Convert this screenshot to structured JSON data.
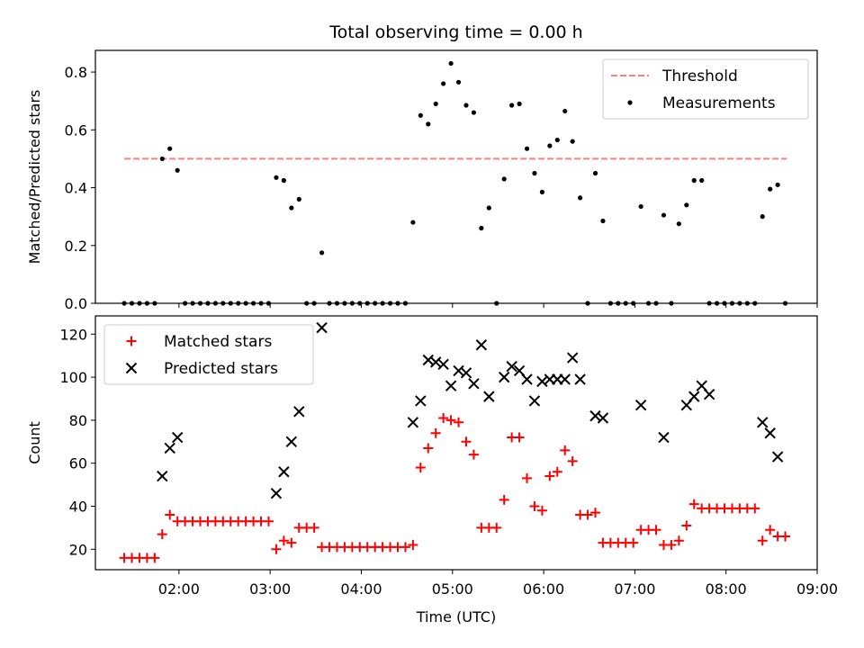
{
  "title": "Total observing time = 0.00 h",
  "chart_data": [
    {
      "type": "scatter",
      "ylabel": "Matched/Predicted stars",
      "xlabel": "",
      "xlim": [
        "01:05",
        "09:00"
      ],
      "ylim": [
        0,
        0.875
      ],
      "yticks": [
        0.0,
        0.2,
        0.4,
        0.6,
        0.8
      ],
      "ytick_labels": [
        "0.0",
        "0.2",
        "0.4",
        "0.6",
        "0.8"
      ],
      "xticks": [
        "02:00",
        "03:00",
        "04:00",
        "05:00",
        "06:00",
        "07:00",
        "08:00",
        "09:00"
      ],
      "xtick_labels_shown": false,
      "legend": {
        "placement": "upper right",
        "entries": [
          "Threshold",
          "Measurements"
        ]
      },
      "threshold": {
        "name": "Threshold",
        "value": 0.5,
        "x_range": [
          "01:24",
          "08:40"
        ],
        "color": "#ff7f7f",
        "style": "dashed"
      },
      "series": [
        {
          "name": "Measurements",
          "color": "#000000",
          "marker": "dot",
          "x": [
            "01:24",
            "01:29",
            "01:34",
            "01:39",
            "01:44",
            "01:49",
            "01:54",
            "01:59",
            "02:04",
            "02:09",
            "02:14",
            "02:19",
            "02:24",
            "02:29",
            "02:34",
            "02:39",
            "02:44",
            "02:49",
            "02:54",
            "02:59",
            "03:04",
            "03:09",
            "03:14",
            "03:19",
            "03:24",
            "03:29",
            "03:34",
            "03:39",
            "03:44",
            "03:49",
            "03:54",
            "03:59",
            "04:04",
            "04:09",
            "04:14",
            "04:19",
            "04:24",
            "04:29",
            "04:34",
            "04:39",
            "04:44",
            "04:49",
            "04:54",
            "04:59",
            "05:04",
            "05:09",
            "05:14",
            "05:19",
            "05:24",
            "05:29",
            "05:34",
            "05:39",
            "05:44",
            "05:49",
            "05:54",
            "05:59",
            "06:04",
            "06:09",
            "06:14",
            "06:19",
            "06:24",
            "06:29",
            "06:34",
            "06:39",
            "06:44",
            "06:49",
            "06:54",
            "06:59",
            "07:04",
            "07:09",
            "07:14",
            "07:19",
            "07:24",
            "07:29",
            "07:34",
            "07:39",
            "07:44",
            "07:49",
            "07:54",
            "07:59",
            "08:04",
            "08:09",
            "08:14",
            "08:19",
            "08:24",
            "08:29",
            "08:34",
            "08:39"
          ],
          "y": [
            0,
            0,
            0,
            0,
            0,
            0.5,
            0.535,
            0.46,
            0,
            0,
            0,
            0,
            0,
            0,
            0,
            0,
            0,
            0,
            0,
            0,
            0.435,
            0.425,
            0.33,
            0.36,
            0,
            0,
            0.175,
            0,
            0,
            0,
            0,
            0,
            0,
            0,
            0,
            0,
            0,
            0,
            0.28,
            0.65,
            0.62,
            0.69,
            0.76,
            0.83,
            0.765,
            0.685,
            0.66,
            0.26,
            0.33,
            0,
            0.43,
            0.685,
            0.69,
            0.535,
            0.45,
            0.385,
            0.545,
            0.565,
            0.665,
            0.56,
            0.365,
            0,
            0.45,
            0.285,
            0,
            0,
            0,
            0,
            0.335,
            0,
            0,
            0.305,
            0,
            0.275,
            0.34,
            0.425,
            0.425,
            0,
            0,
            0,
            0,
            0,
            0,
            0,
            0.3,
            0.395,
            0.41,
            0
          ]
        }
      ]
    },
    {
      "type": "scatter",
      "xlabel": "Time (UTC)",
      "ylabel": "Count",
      "xlim": [
        "01:05",
        "09:00"
      ],
      "ylim": [
        10.5,
        128.5
      ],
      "yticks": [
        20,
        40,
        60,
        80,
        100,
        120
      ],
      "ytick_labels": [
        "20",
        "40",
        "60",
        "80",
        "100",
        "120"
      ],
      "xticks": [
        "02:00",
        "03:00",
        "04:00",
        "05:00",
        "06:00",
        "07:00",
        "08:00",
        "09:00"
      ],
      "xtick_labels": [
        "02:00",
        "03:00",
        "04:00",
        "05:00",
        "06:00",
        "07:00",
        "08:00",
        "09:00"
      ],
      "legend": {
        "placement": "upper left",
        "entries": [
          "Matched stars",
          "Predicted stars"
        ]
      },
      "series": [
        {
          "name": "Matched stars",
          "color": "#ff0000",
          "marker": "plus",
          "x": [
            "01:24",
            "01:29",
            "01:34",
            "01:39",
            "01:44",
            "01:49",
            "01:54",
            "01:59",
            "02:04",
            "02:09",
            "02:14",
            "02:19",
            "02:24",
            "02:29",
            "02:34",
            "02:39",
            "02:44",
            "02:49",
            "02:54",
            "02:59",
            "03:04",
            "03:09",
            "03:14",
            "03:19",
            "03:24",
            "03:29",
            "03:34",
            "03:39",
            "03:44",
            "03:49",
            "03:54",
            "03:59",
            "04:04",
            "04:09",
            "04:14",
            "04:19",
            "04:24",
            "04:29",
            "04:34",
            "04:39",
            "04:44",
            "04:49",
            "04:54",
            "04:59",
            "05:04",
            "05:09",
            "05:14",
            "05:19",
            "05:24",
            "05:29",
            "05:34",
            "05:39",
            "05:44",
            "05:49",
            "05:54",
            "05:59",
            "06:04",
            "06:09",
            "06:14",
            "06:19",
            "06:24",
            "06:29",
            "06:34",
            "06:39",
            "06:44",
            "06:49",
            "06:54",
            "06:59",
            "07:04",
            "07:09",
            "07:14",
            "07:19",
            "07:24",
            "07:29",
            "07:34",
            "07:39",
            "07:44",
            "07:49",
            "07:54",
            "07:59",
            "08:04",
            "08:09",
            "08:14",
            "08:19",
            "08:24",
            "08:29",
            "08:34",
            "08:39"
          ],
          "y": [
            16,
            16,
            16,
            16,
            16,
            27,
            36,
            33,
            33,
            33,
            33,
            33,
            33,
            33,
            33,
            33,
            33,
            33,
            33,
            33,
            20,
            24,
            23,
            30,
            30,
            30,
            21,
            21,
            21,
            21,
            21,
            21,
            21,
            21,
            21,
            21,
            21,
            21,
            22,
            58,
            67,
            74,
            81,
            80,
            79,
            70,
            64,
            30,
            30,
            30,
            43,
            72,
            72,
            53,
            40,
            38,
            54,
            56,
            66,
            61,
            36,
            36,
            37,
            23,
            23,
            23,
            23,
            23,
            29,
            29,
            29,
            22,
            22,
            24,
            31,
            41,
            39,
            39,
            39,
            39,
            39,
            39,
            39,
            39,
            24,
            29,
            26,
            26
          ]
        },
        {
          "name": "Predicted stars",
          "color": "#000000",
          "marker": "x",
          "x": [
            "01:49",
            "01:54",
            "01:59",
            "03:04",
            "03:09",
            "03:14",
            "03:19",
            "03:34",
            "04:34",
            "04:39",
            "04:44",
            "04:49",
            "04:54",
            "04:59",
            "05:04",
            "05:09",
            "05:14",
            "05:19",
            "05:24",
            "05:34",
            "05:39",
            "05:44",
            "05:49",
            "05:54",
            "05:59",
            "06:04",
            "06:09",
            "06:14",
            "06:19",
            "06:24",
            "06:34",
            "06:39",
            "07:04",
            "07:19",
            "07:34",
            "07:39",
            "07:44",
            "07:49",
            "08:24",
            "08:29",
            "08:34"
          ],
          "y": [
            54,
            67,
            72,
            46,
            56,
            70,
            84,
            123,
            79,
            89,
            108,
            107,
            106,
            96,
            103,
            102,
            97,
            115,
            91,
            100,
            105,
            103,
            99,
            89,
            98,
            99,
            99,
            99,
            109,
            99,
            82,
            81,
            87,
            72,
            87,
            91,
            96,
            92,
            79,
            74,
            63
          ]
        }
      ]
    }
  ]
}
